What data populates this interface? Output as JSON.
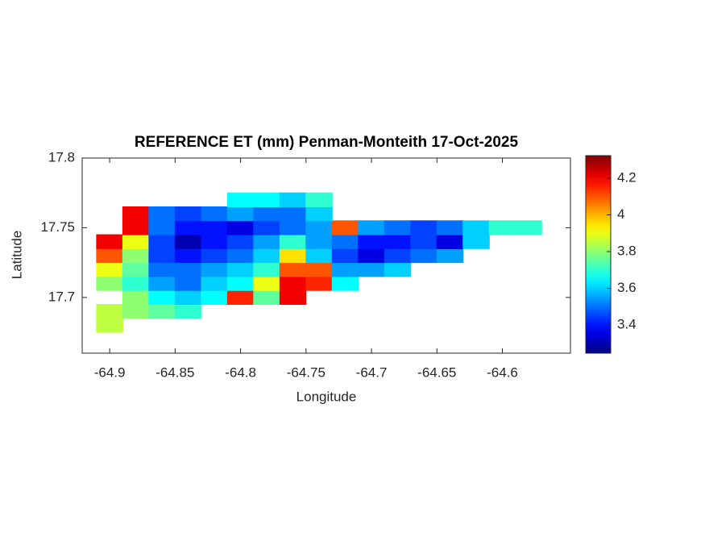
{
  "chart_data": {
    "type": "heatmap",
    "title": "REFERENCE ET (mm) Penman-Monteith 17-Oct-2025",
    "x_label": "Longitude",
    "y_label": "Latitude",
    "x": [
      -64.9,
      -64.88,
      -64.86,
      -64.84,
      -64.82,
      -64.8,
      -64.78,
      -64.76,
      -64.74,
      -64.72,
      -64.7,
      -64.68,
      -64.66,
      -64.64,
      -64.62,
      -64.6,
      -64.58,
      -64.56
    ],
    "y": [
      17.68,
      17.69,
      17.7,
      17.71,
      17.72,
      17.73,
      17.74,
      17.75,
      17.76,
      17.77
    ],
    "z": [
      [
        3.85,
        null,
        null,
        null,
        null,
        null,
        null,
        null,
        null,
        null,
        null,
        null,
        null,
        null,
        null,
        null,
        null,
        null
      ],
      [
        3.85,
        3.8,
        3.75,
        3.7,
        null,
        null,
        null,
        null,
        null,
        null,
        null,
        null,
        null,
        null,
        null,
        null,
        null,
        null
      ],
      [
        null,
        3.8,
        3.65,
        3.6,
        3.65,
        4.15,
        3.75,
        4.2,
        null,
        null,
        null,
        null,
        null,
        null,
        null,
        null,
        null,
        null
      ],
      [
        3.8,
        3.7,
        3.55,
        3.5,
        3.6,
        3.65,
        3.9,
        4.2,
        4.15,
        3.65,
        null,
        null,
        null,
        null,
        null,
        null,
        null,
        null
      ],
      [
        3.9,
        3.75,
        3.5,
        3.5,
        3.55,
        3.6,
        3.7,
        4.1,
        4.1,
        3.55,
        3.55,
        3.6,
        null,
        null,
        null,
        null,
        null,
        null
      ],
      [
        4.1,
        3.8,
        3.45,
        3.4,
        3.45,
        3.5,
        3.6,
        3.95,
        3.6,
        3.45,
        3.35,
        3.45,
        3.5,
        3.55,
        null,
        null,
        null,
        null
      ],
      [
        4.2,
        3.9,
        3.45,
        3.3,
        3.4,
        3.45,
        3.55,
        3.7,
        3.55,
        3.5,
        3.4,
        3.4,
        3.45,
        3.35,
        3.6,
        null,
        null,
        null
      ],
      [
        null,
        4.2,
        3.5,
        3.4,
        3.4,
        3.35,
        3.45,
        3.5,
        3.55,
        4.1,
        3.55,
        3.5,
        3.45,
        3.5,
        3.6,
        3.7,
        3.7,
        null
      ],
      [
        null,
        4.2,
        3.5,
        3.45,
        3.5,
        3.55,
        3.5,
        3.5,
        3.6,
        null,
        null,
        null,
        null,
        null,
        null,
        null,
        null,
        null
      ],
      [
        null,
        null,
        null,
        null,
        null,
        3.65,
        3.65,
        3.6,
        3.7,
        null,
        null,
        null,
        null,
        null,
        null,
        null,
        null,
        null
      ]
    ],
    "xlim": [
      -64.921,
      -64.548
    ],
    "ylim": [
      17.66,
      17.8
    ],
    "xticks": [
      -64.9,
      -64.85,
      -64.8,
      -64.75,
      -64.7,
      -64.65,
      -64.6
    ],
    "yticks": [
      17.7,
      17.75,
      17.8
    ],
    "colormap": "jet",
    "clim": [
      3.246,
      4.323
    ],
    "cticks": [
      3.4,
      3.6,
      3.8,
      4,
      4.2
    ]
  }
}
